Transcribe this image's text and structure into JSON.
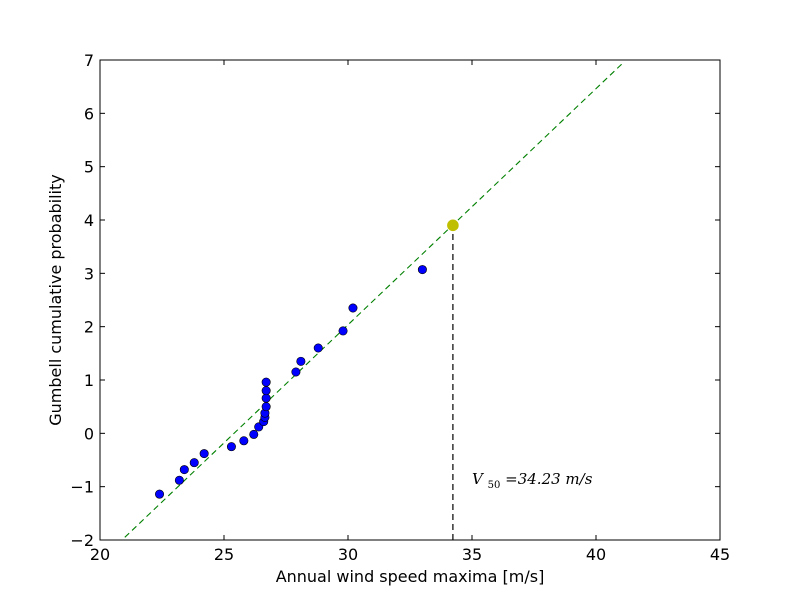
{
  "chart_data": {
    "type": "scatter",
    "xlabel": "Annual wind speed maxima [m/s]",
    "ylabel": "Gumbell cumulative probability",
    "xlim": [
      20,
      45
    ],
    "ylim": [
      -2,
      7
    ],
    "xticks": [
      "20",
      "25",
      "30",
      "35",
      "40",
      "45"
    ],
    "yticks": [
      "−2",
      "−1",
      "0",
      "1",
      "2",
      "3",
      "4",
      "5",
      "6",
      "7"
    ],
    "grid": false,
    "series": [
      {
        "kind": "points",
        "color": "#0000ff",
        "x": [
          22.4,
          23.2,
          23.4,
          23.8,
          24.2,
          25.3,
          25.8,
          26.2,
          26.4,
          26.6,
          26.65,
          26.65,
          26.7,
          26.7,
          26.7,
          26.7,
          27.9,
          28.1,
          28.8,
          29.8,
          30.2,
          33.0
        ],
        "y": [
          -1.14,
          -0.88,
          -0.68,
          -0.55,
          -0.38,
          -0.25,
          -0.14,
          -0.02,
          0.12,
          0.22,
          0.3,
          0.38,
          0.5,
          0.66,
          0.8,
          0.96,
          1.15,
          1.35,
          1.6,
          1.92,
          2.35,
          3.07
        ]
      },
      {
        "kind": "fit-line",
        "style": "dashed",
        "color": "#008000",
        "x": [
          21.0,
          41.1
        ],
        "y": [
          -1.95,
          6.95
        ]
      },
      {
        "kind": "return-level-point",
        "color": "#bfbf00",
        "x": [
          34.23
        ],
        "y": [
          3.9
        ]
      },
      {
        "kind": "drop-line",
        "style": "dashed",
        "color": "#000000",
        "x": [
          34.23,
          34.23
        ],
        "y": [
          -2,
          3.9
        ]
      }
    ],
    "annotation": {
      "var": "V",
      "sub": "50",
      "rest": "=34.23 m/s",
      "x": 35.0,
      "y": -0.95
    }
  }
}
